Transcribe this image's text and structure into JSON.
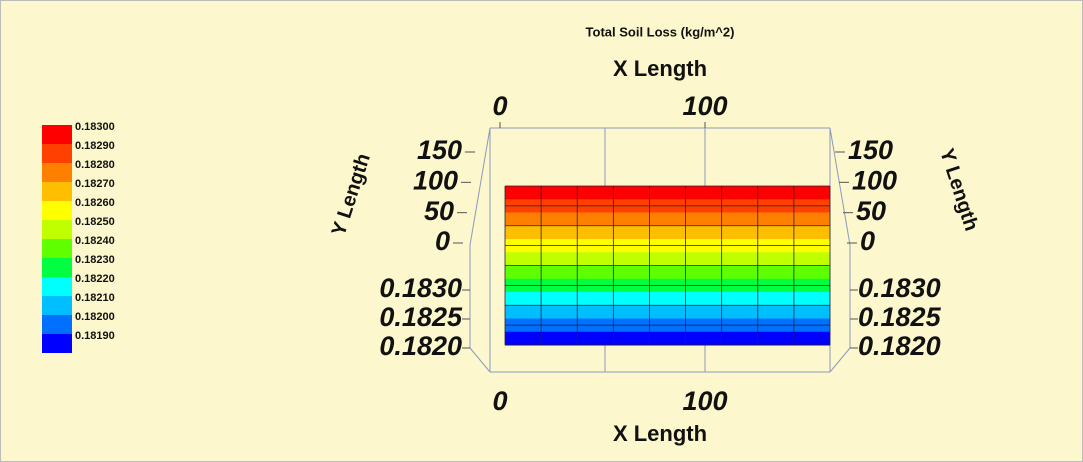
{
  "chart_data": {
    "type": "surface",
    "title": "Total Soil Loss (kg/m^2)",
    "xlabel": "X Length",
    "ylabel": "Y Length",
    "xticks": [
      0,
      100
    ],
    "yticks": [
      0,
      50,
      100,
      150
    ],
    "zticks": [
      {
        "value": 0.183,
        "label": "0.1830"
      },
      {
        "value": 0.1825,
        "label": "0.1825"
      },
      {
        "value": 0.182,
        "label": "0.1820"
      }
    ],
    "levels": [
      {
        "value": 0.183,
        "label": "0.18300",
        "color": "#ff0000"
      },
      {
        "value": 0.1829,
        "label": "0.18290",
        "color": "#ff4000"
      },
      {
        "value": 0.1828,
        "label": "0.18280",
        "color": "#ff8000"
      },
      {
        "value": 0.1827,
        "label": "0.18270",
        "color": "#ffbf00"
      },
      {
        "value": 0.1826,
        "label": "0.18260",
        "color": "#ffff00"
      },
      {
        "value": 0.1825,
        "label": "0.18250",
        "color": "#bfff00"
      },
      {
        "value": 0.1824,
        "label": "0.18240",
        "color": "#60ff00"
      },
      {
        "value": 0.1823,
        "label": "0.18230",
        "color": "#00ff40"
      },
      {
        "value": 0.1822,
        "label": "0.18220",
        "color": "#00ffff"
      },
      {
        "value": 0.1821,
        "label": "0.18210",
        "color": "#00bfff"
      },
      {
        "value": 0.182,
        "label": "0.18200",
        "color": "#0070ff"
      },
      {
        "value": 0.1819,
        "label": "0.18190",
        "color": "#0000ff"
      }
    ]
  }
}
